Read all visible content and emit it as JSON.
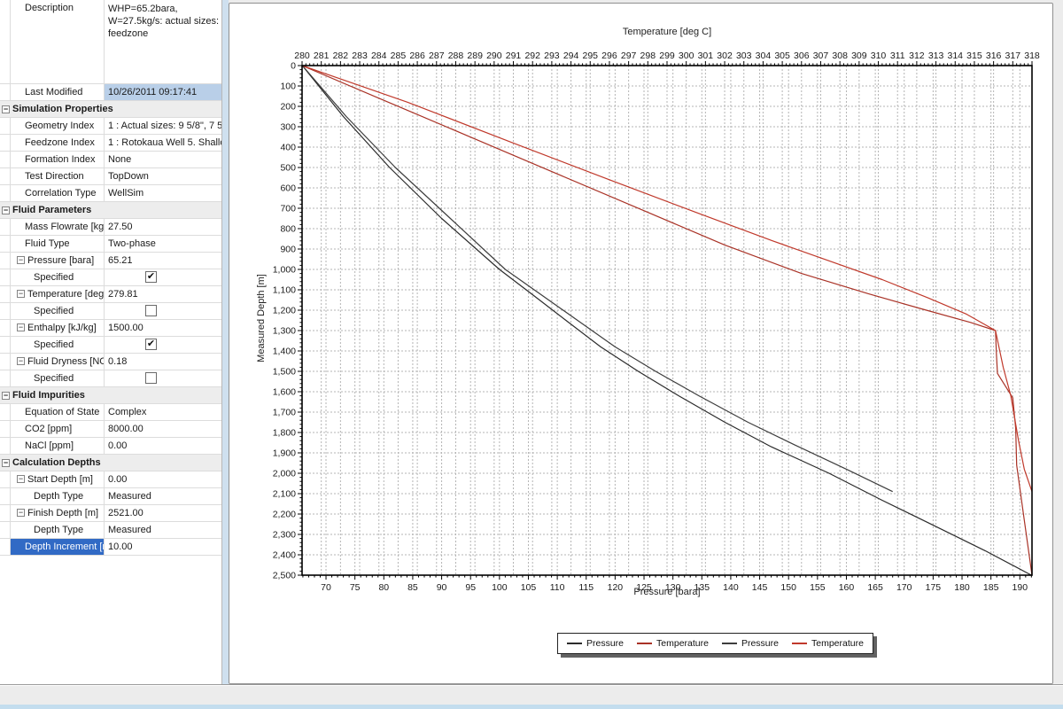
{
  "colors": {
    "selected_row_bg": "#316ac5",
    "selected_row_text": "#ffffff",
    "value_highlight_bg": "#b9cfe8",
    "category_bg": "#ededed",
    "splitter": "#cfe0ef",
    "grid_line": "#b4b4b4",
    "axis_line": "#000000"
  },
  "property_grid": {
    "rows": [
      {
        "kind": "prop",
        "label": "Description",
        "value": "WHP=65.2bara,\nW=27.5kg/s: actual sizes:\nfeedzone",
        "tall": true
      },
      {
        "kind": "prop",
        "label": "Last Modified",
        "value": "10/26/2011 09:17:41",
        "value_highlight": true
      },
      {
        "kind": "cat",
        "label": "Simulation Properties"
      },
      {
        "kind": "prop",
        "label": "Geometry Index",
        "value": "1 : Actual sizes: 9 5/8\", 7 5"
      },
      {
        "kind": "prop",
        "label": "Feedzone Index",
        "value": "1 : Rotokaua Well 5. Shallow"
      },
      {
        "kind": "prop",
        "label": "Formation Index",
        "value": "None"
      },
      {
        "kind": "prop",
        "label": "Test Direction",
        "value": "TopDown"
      },
      {
        "kind": "prop",
        "label": "Correlation Type",
        "value": "WellSim"
      },
      {
        "kind": "cat",
        "label": "Fluid Parameters"
      },
      {
        "kind": "prop",
        "label": "Mass Flowrate [kg/s",
        "value": "27.50"
      },
      {
        "kind": "prop",
        "label": "Fluid Type",
        "value": "Two-phase"
      },
      {
        "kind": "prop",
        "label": "Pressure [bara]",
        "value": "65.21",
        "expand": true
      },
      {
        "kind": "prop",
        "label": "Specified",
        "checkbox": "checked",
        "indent": 2
      },
      {
        "kind": "prop",
        "label": "Temperature [deg C",
        "value": "279.81",
        "expand": true
      },
      {
        "kind": "prop",
        "label": "Specified",
        "checkbox": "unchecked",
        "indent": 2
      },
      {
        "kind": "prop",
        "label": "Enthalpy [kJ/kg]",
        "value": "1500.00",
        "expand": true
      },
      {
        "kind": "prop",
        "label": "Specified",
        "checkbox": "checked",
        "indent": 2
      },
      {
        "kind": "prop",
        "label": "Fluid Dryness [NONE",
        "value": "0.18",
        "expand": true
      },
      {
        "kind": "prop",
        "label": "Specified",
        "checkbox": "unchecked",
        "indent": 2
      },
      {
        "kind": "cat",
        "label": "Fluid Impurities"
      },
      {
        "kind": "prop",
        "label": "Equation of State",
        "value": "Complex"
      },
      {
        "kind": "prop",
        "label": "CO2 [ppm]",
        "value": "8000.00"
      },
      {
        "kind": "prop",
        "label": "NaCl [ppm]",
        "value": "0.00"
      },
      {
        "kind": "cat",
        "label": "Calculation Depths"
      },
      {
        "kind": "prop",
        "label": "Start Depth [m]",
        "value": "0.00",
        "expand": true
      },
      {
        "kind": "prop",
        "label": "Depth Type",
        "value": "Measured",
        "indent": 2
      },
      {
        "kind": "prop",
        "label": "Finish Depth [m]",
        "value": "2521.00",
        "expand": true
      },
      {
        "kind": "prop",
        "label": "Depth Type",
        "value": "Measured",
        "indent": 2
      },
      {
        "kind": "prop",
        "label": "Depth Increment [m",
        "value": "10.00",
        "selected": true
      }
    ]
  },
  "chart_data": {
    "type": "line",
    "top_axis": {
      "title": "Temperature [deg C]",
      "min": 280,
      "max": 318,
      "tick_step": 1
    },
    "bottom_axis": {
      "title": "Pressure [bara]",
      "min": 65.86,
      "max": 192.1,
      "first_tick": 70,
      "tick_step": 5,
      "last_tick": 190
    },
    "left_axis": {
      "title": "Measured Depth [m]",
      "min": 0,
      "max": 2500,
      "tick_step": 100
    },
    "grid": {
      "style": "dashed",
      "on": true
    },
    "legend_position": "bottom-center",
    "legend": [
      "Pressure",
      "Temperature",
      "Pressure",
      "Temperature"
    ],
    "series": [
      {
        "id": "pressure-simulated",
        "name": "Pressure",
        "color": "#2b2b2b",
        "x_axis": "bottom",
        "points": [
          [
            65.9,
            0
          ],
          [
            73,
            250
          ],
          [
            81,
            500
          ],
          [
            90,
            750
          ],
          [
            100,
            1000
          ],
          [
            106,
            1130
          ],
          [
            111.5,
            1250
          ],
          [
            117.5,
            1380
          ],
          [
            124,
            1500
          ],
          [
            131,
            1620
          ],
          [
            139,
            1750
          ],
          [
            147,
            1870
          ],
          [
            157,
            2000
          ],
          [
            166,
            2130
          ],
          [
            175,
            2255
          ],
          [
            184,
            2380
          ],
          [
            192,
            2500
          ]
        ]
      },
      {
        "id": "temperature-simulated",
        "name": "Temperature",
        "color": "#a93226",
        "x_axis": "top",
        "points": [
          [
            280,
            0
          ],
          [
            284.5,
            180
          ],
          [
            289,
            360
          ],
          [
            293.5,
            540
          ],
          [
            298,
            720
          ],
          [
            302,
            880
          ],
          [
            306,
            1020
          ],
          [
            309.5,
            1120
          ],
          [
            312.5,
            1200
          ],
          [
            314.8,
            1260
          ],
          [
            316.1,
            1300
          ],
          [
            316.15,
            1420
          ],
          [
            316.2,
            1510
          ],
          [
            317,
            1630
          ],
          [
            317.15,
            1780
          ],
          [
            317.2,
            1960
          ],
          [
            317.6,
            2230
          ],
          [
            318,
            2500
          ]
        ]
      },
      {
        "id": "pressure-measured",
        "name": "Pressure",
        "color": "#3d3d3d",
        "x_axis": "bottom",
        "points": [
          [
            65.9,
            0
          ],
          [
            73.5,
            250
          ],
          [
            82,
            500
          ],
          [
            91.5,
            750
          ],
          [
            101,
            1000
          ],
          [
            107.5,
            1130
          ],
          [
            113.5,
            1250
          ],
          [
            120,
            1380
          ],
          [
            127,
            1500
          ],
          [
            134.5,
            1620
          ],
          [
            143,
            1750
          ],
          [
            151,
            1860
          ],
          [
            160,
            1980
          ],
          [
            168,
            2090
          ]
        ]
      },
      {
        "id": "temperature-measured",
        "name": "Temperature",
        "color": "#c0392b",
        "x_axis": "top",
        "points": [
          [
            280,
            0
          ],
          [
            285.5,
            180
          ],
          [
            291,
            380
          ],
          [
            296,
            560
          ],
          [
            300.5,
            720
          ],
          [
            304.5,
            860
          ],
          [
            307.5,
            960
          ],
          [
            310.2,
            1050
          ],
          [
            312.6,
            1140
          ],
          [
            314.6,
            1220
          ],
          [
            316.1,
            1300
          ],
          [
            316.5,
            1480
          ],
          [
            316.9,
            1620
          ],
          [
            317.3,
            1840
          ],
          [
            317.6,
            1980
          ],
          [
            318,
            2090
          ]
        ]
      }
    ]
  }
}
